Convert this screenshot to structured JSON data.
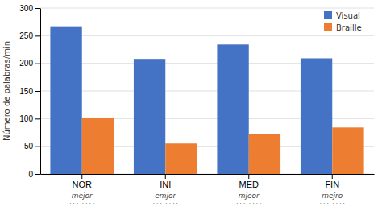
{
  "chart_data": {
    "type": "bar",
    "ylabel": "Número de palabras/min",
    "categories": [
      "NOR",
      "INI",
      "MED",
      "FIN"
    ],
    "series": [
      {
        "name": "Visual",
        "color": "#4472C4",
        "values": [
          267,
          208,
          234,
          209
        ]
      },
      {
        "name": "Braille",
        "color": "#ED7D31",
        "values": [
          102,
          55,
          72,
          84
        ]
      }
    ],
    "ylim": [
      0,
      300
    ],
    "yticks": [
      0,
      50,
      100,
      150,
      200,
      250,
      300
    ],
    "grid": true,
    "legend": "upper right",
    "annotations": [
      {
        "x": "NOR",
        "text": "mejor"
      },
      {
        "x": "NOR",
        "text": "· · ·  · · · ·"
      },
      {
        "x": "NOR",
        "text": "· · ·  · · · ·"
      },
      {
        "x": "INI",
        "text": "emjor"
      },
      {
        "x": "INI",
        "text": "· · ·  · · · ·"
      },
      {
        "x": "INI",
        "text": "· · ·  · · · ·"
      },
      {
        "x": "MED",
        "text": "mjeor"
      },
      {
        "x": "MED",
        "text": "· · ·  · · · ·"
      },
      {
        "x": "MED",
        "text": "· · ·  · · · ·"
      },
      {
        "x": "FIN",
        "text": "mejro"
      },
      {
        "x": "FIN",
        "text": "· · ·  · · · ·"
      },
      {
        "x": "FIN",
        "text": "· · ·  · · · ·"
      }
    ]
  }
}
